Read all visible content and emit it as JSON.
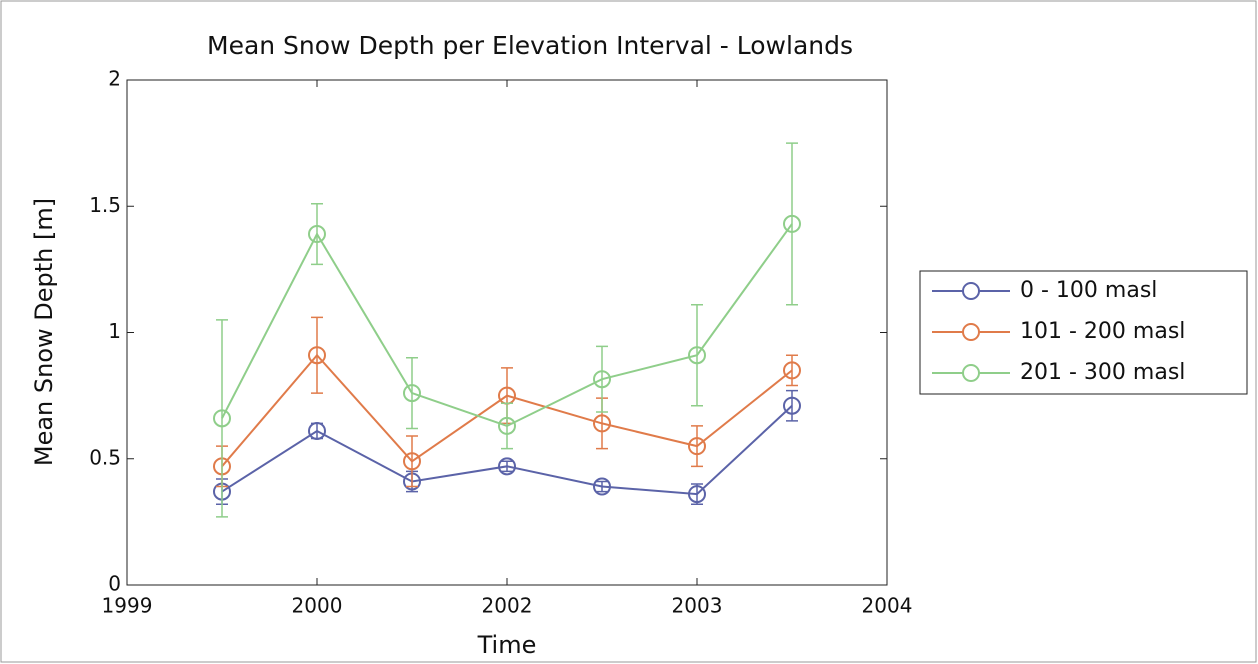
{
  "chart_data": {
    "type": "line",
    "title": "Mean Snow Depth per Elevation Interval - Lowlands",
    "x_label": "Time",
    "y_label": "Mean Snow Depth [m]",
    "x": [
      0.5,
      1,
      1.5,
      2,
      2.5,
      3,
      3.5
    ],
    "xlim": [
      0,
      4
    ],
    "xticks": [
      {
        "value": 0,
        "label": "1999"
      },
      {
        "value": 1,
        "label": "2000"
      },
      {
        "value": 2,
        "label": "2002"
      },
      {
        "value": 3,
        "label": "2003"
      },
      {
        "value": 4,
        "label": "2004"
      }
    ],
    "ylim": [
      0,
      2
    ],
    "yticks": [
      0,
      0.5,
      1,
      1.5,
      2
    ],
    "legend": "right",
    "series": [
      {
        "name": "0 - 100 masl",
        "color": "#5b63a8",
        "values": [
          0.37,
          0.61,
          0.41,
          0.47,
          0.39,
          0.36,
          0.71
        ],
        "errors": [
          0.05,
          0.03,
          0.04,
          0.02,
          0.02,
          0.04,
          0.06
        ]
      },
      {
        "name": "101 - 200 masl",
        "color": "#e07b4a",
        "values": [
          0.47,
          0.91,
          0.49,
          0.75,
          0.64,
          0.55,
          0.85
        ],
        "errors": [
          0.08,
          0.15,
          0.1,
          0.11,
          0.1,
          0.08,
          0.06
        ]
      },
      {
        "name": "201 - 300 masl",
        "color": "#8fce8a",
        "values": [
          0.66,
          1.39,
          0.76,
          0.63,
          0.815,
          0.91,
          1.43
        ],
        "errors": [
          0.39,
          0.12,
          0.14,
          0.09,
          0.13,
          0.2,
          0.32
        ]
      }
    ]
  }
}
